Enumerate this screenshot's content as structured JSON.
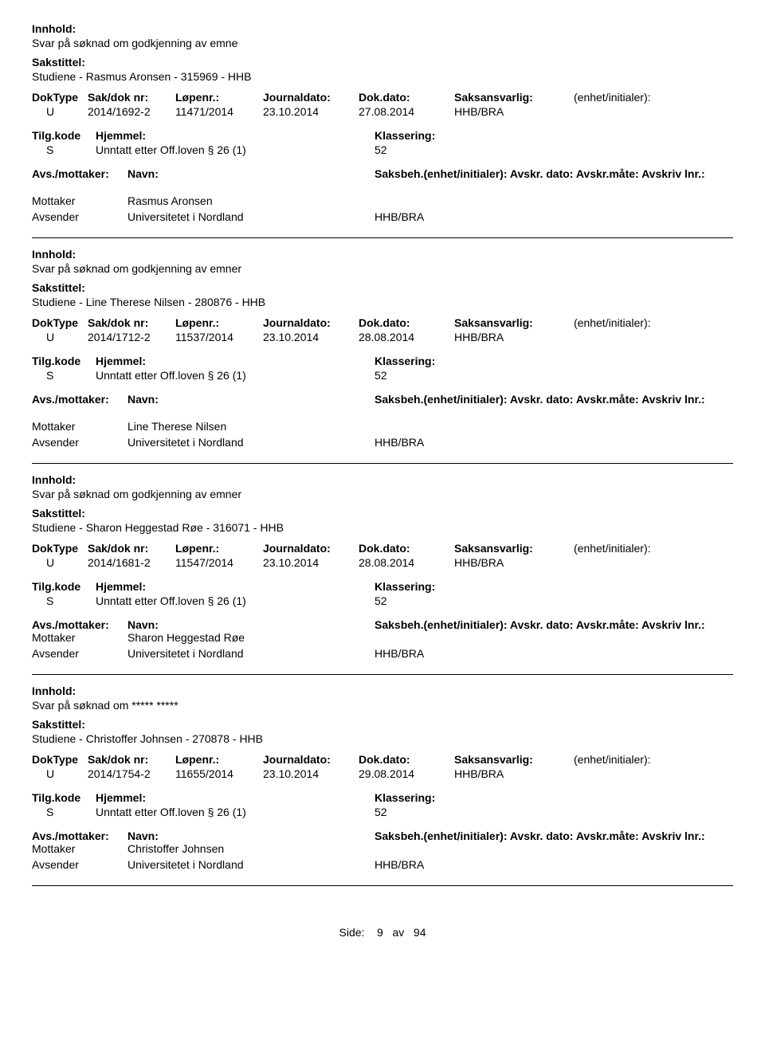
{
  "labels": {
    "innhold": "Innhold:",
    "sakstittel": "Sakstittel:",
    "doktype": "DokType",
    "sakdoknr": "Sak/dok nr:",
    "lopenr": "Løpenr.:",
    "journaldato": "Journaldato:",
    "dokdato": "Dok.dato:",
    "saksansvarlig": "Saksansvarlig:",
    "enhet_initialer": "(enhet/initialer):",
    "tilgkode": "Tilg.kode",
    "hjemmel": "Hjemmel:",
    "klassering": "Klassering:",
    "avs_mottaker": "Avs./mottaker:",
    "navn": "Navn:",
    "saksbeh_full": "Saksbeh.(enhet/initialer): Avskr. dato: Avskr.måte: Avskriv lnr.:",
    "mottaker": "Mottaker",
    "avsender": "Avsender",
    "side": "Side:",
    "av": "av"
  },
  "footer": {
    "page": "9",
    "total": "94"
  },
  "records": [
    {
      "innhold": "Svar på søknad om godkjenning av emne",
      "sakstittel": "Studiene - Rasmus Aronsen  - 315969 - HHB",
      "doktype": "U",
      "sakdoknr": "2014/1692-2",
      "lopenr": "11471/2014",
      "journaldato": "23.10.2014",
      "dokdato": "27.08.2014",
      "saksansvarlig": "HHB/BRA",
      "tilgkode": "S",
      "hjemmel": "Unntatt etter Off.loven § 26 (1)",
      "klassering": "52",
      "mottaker_navn": "Rasmus Aronsen",
      "avsender_navn": "Universitetet i Nordland",
      "avsender_enhet": "HHB/BRA",
      "saksbeh_extra_gap": true
    },
    {
      "innhold": "Svar på søknad om godkjenning av emner",
      "sakstittel": "Studiene - Line Therese Nilsen - 280876 - HHB",
      "doktype": "U",
      "sakdoknr": "2014/1712-2",
      "lopenr": "11537/2014",
      "journaldato": "23.10.2014",
      "dokdato": "28.08.2014",
      "saksansvarlig": "HHB/BRA",
      "tilgkode": "S",
      "hjemmel": "Unntatt etter Off.loven § 26 (1)",
      "klassering": "52",
      "mottaker_navn": "Line Therese Nilsen",
      "avsender_navn": "Universitetet i Nordland",
      "avsender_enhet": "HHB/BRA",
      "saksbeh_extra_gap": true
    },
    {
      "innhold": "Svar på søknad om godkjenning av emner",
      "sakstittel": "Studiene - Sharon Heggestad Røe - 316071 - HHB",
      "doktype": "U",
      "sakdoknr": "2014/1681-2",
      "lopenr": "11547/2014",
      "journaldato": "23.10.2014",
      "dokdato": "28.08.2014",
      "saksansvarlig": "HHB/BRA",
      "tilgkode": "S",
      "hjemmel": "Unntatt etter Off.loven § 26 (1)",
      "klassering": "52",
      "mottaker_navn": "Sharon Heggestad Røe",
      "avsender_navn": "Universitetet i Nordland",
      "avsender_enhet": "HHB/BRA",
      "saksbeh_extra_gap": false
    },
    {
      "innhold": "Svar på søknad om ***** *****",
      "sakstittel": "Studiene - Christoffer Johnsen - 270878 - HHB",
      "doktype": "U",
      "sakdoknr": "2014/1754-2",
      "lopenr": "11655/2014",
      "journaldato": "23.10.2014",
      "dokdato": "29.08.2014",
      "saksansvarlig": "HHB/BRA",
      "tilgkode": "S",
      "hjemmel": "Unntatt etter Off.loven § 26 (1)",
      "klassering": "52",
      "mottaker_navn": "Christoffer Johnsen",
      "avsender_navn": "Universitetet i Nordland",
      "avsender_enhet": "HHB/BRA",
      "saksbeh_extra_gap": false
    }
  ]
}
